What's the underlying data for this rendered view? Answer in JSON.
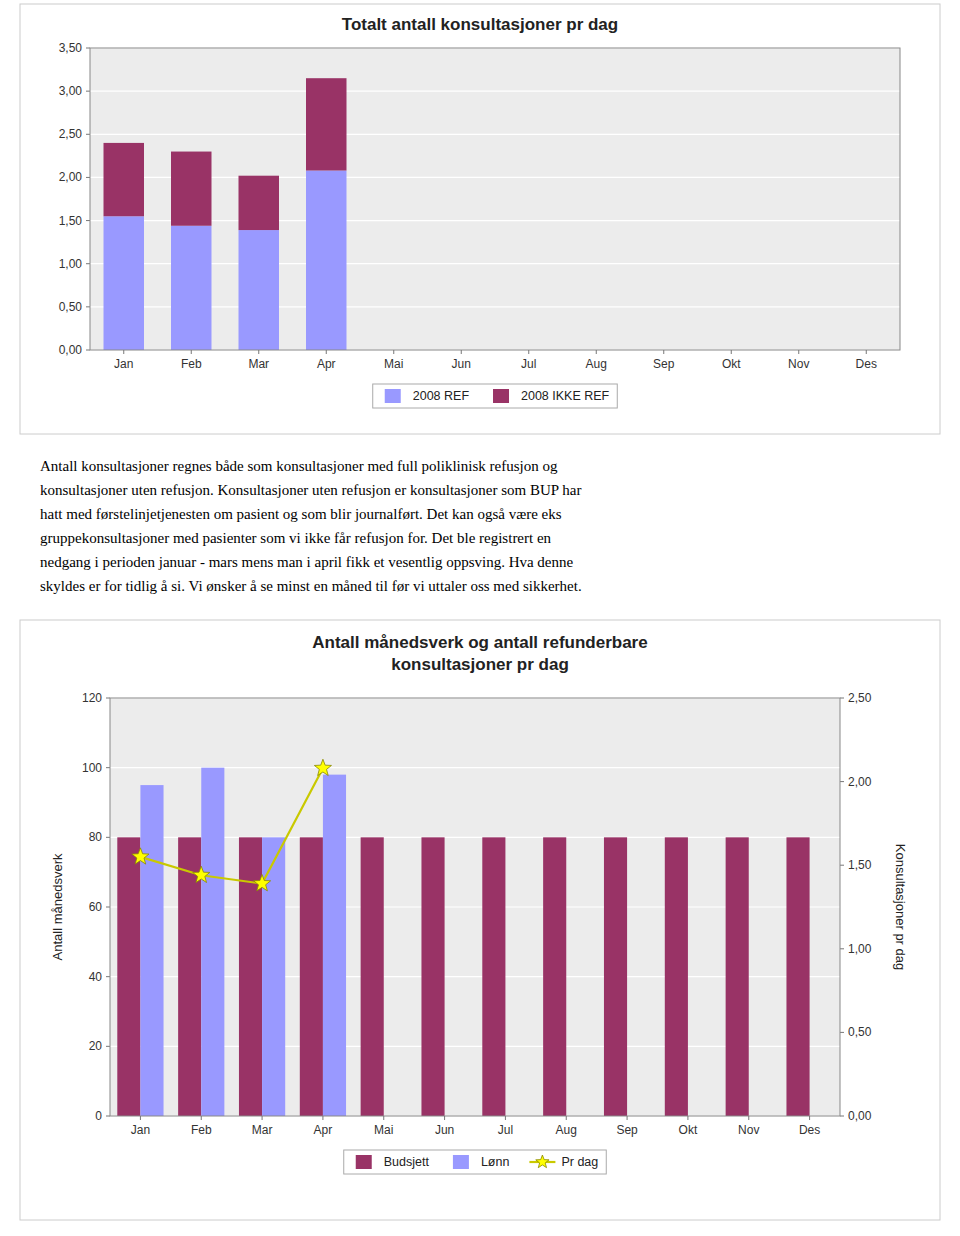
{
  "chart_data": [
    {
      "type": "bar",
      "title": "Totalt antall konsultasjoner pr dag",
      "categories": [
        "Jan",
        "Feb",
        "Mar",
        "Apr",
        "Mai",
        "Jun",
        "Jul",
        "Aug",
        "Sep",
        "Okt",
        "Nov",
        "Des"
      ],
      "series": [
        {
          "name": "2008 REF",
          "color": "#9999FF",
          "values": [
            1.55,
            1.44,
            1.39,
            2.08,
            0,
            0,
            0,
            0,
            0,
            0,
            0,
            0
          ]
        },
        {
          "name": "2008 IKKE REF",
          "color": "#993366",
          "values": [
            0.85,
            0.86,
            0.63,
            1.07,
            0,
            0,
            0,
            0,
            0,
            0,
            0,
            0
          ]
        }
      ],
      "stacked": true,
      "ylim": [
        0,
        3.5
      ],
      "yticks": [
        {
          "value": 0.0,
          "label": "0,00"
        },
        {
          "value": 0.5,
          "label": "0,50"
        },
        {
          "value": 1.0,
          "label": "1,00"
        },
        {
          "value": 1.5,
          "label": "1,50"
        },
        {
          "value": 2.0,
          "label": "2,00"
        },
        {
          "value": 2.5,
          "label": "2,50"
        },
        {
          "value": 3.0,
          "label": "3,00"
        },
        {
          "value": 3.5,
          "label": "3,50"
        }
      ],
      "grid": true,
      "legend": "bottom"
    },
    {
      "type": "bar",
      "title": "Antall månedsverk og antall refunderbare\nkonsultasjoner pr dag",
      "categories": [
        "Jan",
        "Feb",
        "Mar",
        "Apr",
        "Mai",
        "Jun",
        "Jul",
        "Aug",
        "Sep",
        "Okt",
        "Nov",
        "Des"
      ],
      "series": [
        {
          "name": "Budsjett",
          "color": "#993366",
          "values": [
            80,
            80,
            80,
            80,
            80,
            80,
            80,
            80,
            80,
            80,
            80,
            80
          ]
        },
        {
          "name": "Lønn",
          "color": "#9999FF",
          "values": [
            95,
            100,
            80,
            98,
            0,
            0,
            0,
            0,
            0,
            0,
            0,
            0
          ]
        },
        {
          "name": "Pr dag",
          "type": "line",
          "axis": "y2",
          "color": "#FFFF00",
          "marker": "star",
          "values": [
            1.55,
            1.44,
            1.39,
            2.08,
            null,
            null,
            null,
            null,
            null,
            null,
            null,
            null
          ]
        }
      ],
      "ylabel": "Antall månedsverk",
      "y2label": "Konsultasjoner pr dag",
      "ylim": [
        0,
        120
      ],
      "yticks": [
        0,
        20,
        40,
        60,
        80,
        100,
        120
      ],
      "y2lim": [
        0,
        2.5
      ],
      "y2ticks": [
        {
          "value": 0.0,
          "label": "0,00"
        },
        {
          "value": 0.5,
          "label": "0,50"
        },
        {
          "value": 1.0,
          "label": "1,00"
        },
        {
          "value": 1.5,
          "label": "1,50"
        },
        {
          "value": 2.0,
          "label": "2,00"
        },
        {
          "value": 2.5,
          "label": "2,50"
        }
      ],
      "grid": true,
      "legend": "bottom"
    }
  ],
  "text": [
    "Antall konsultasjoner regnes både som konsultasjoner med full poliklinisk refusjon og",
    "konsultasjoner uten refusjon. Konsultasjoner uten refusjon er konsultasjoner som BUP har",
    "hatt med førstelinjetjenesten om pasient og som blir journalført. Det kan også være eks",
    "gruppekonsultasjoner med pasienter som vi ikke får refusjon for. Det ble registrert en",
    "nedgang i perioden januar - mars mens man i april fikk et vesentlig oppsving. Hva denne",
    "skyldes er for tidlig å si. Vi ønsker å se minst en måned til før vi uttaler oss med sikkerhet."
  ]
}
